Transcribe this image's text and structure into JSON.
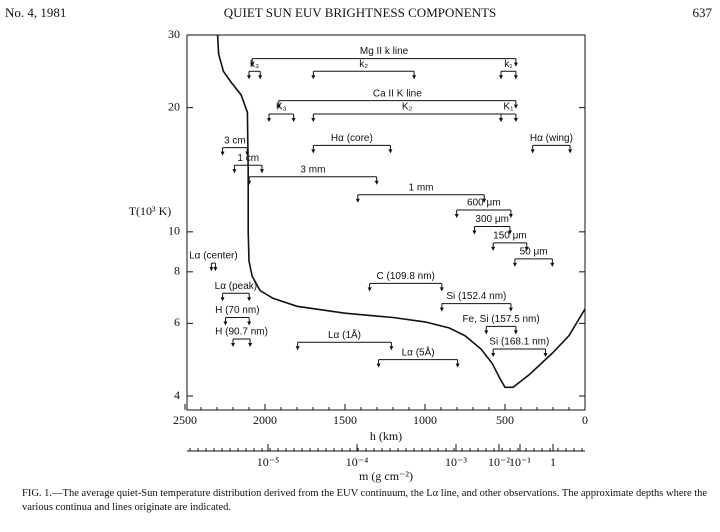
{
  "header": {
    "issue": "No. 4, 1981",
    "title": "QUIET SUN EUV BRIGHTNESS COMPONENTS",
    "page": "637"
  },
  "chart_data": {
    "type": "line",
    "ylog": true,
    "ylabel": "T(10³ K)",
    "xlabel": "h (km)",
    "x": [
      2296,
      2290,
      2260,
      2210,
      2150,
      2110,
      2105,
      2105,
      2100,
      2080,
      2030,
      1950,
      1800,
      1500,
      1200,
      1000,
      850,
      750,
      650,
      580,
      530,
      500,
      450,
      350,
      200,
      100,
      0
    ],
    "values": [
      30,
      27,
      24.5,
      23,
      21.5,
      19.5,
      14,
      10,
      8.5,
      7.8,
      7.2,
      6.9,
      6.6,
      6.35,
      6.2,
      6.05,
      5.85,
      5.6,
      5.2,
      4.8,
      4.4,
      4.2,
      4.2,
      4.5,
      5.1,
      5.6,
      6.5
    ],
    "color": "#111111",
    "xlim": [
      2500,
      0
    ],
    "xticks": [
      2500,
      2000,
      1500,
      1000,
      500,
      0
    ],
    "ylim": [
      3.7,
      30
    ],
    "yticks": [
      4,
      6,
      8,
      10,
      20,
      30
    ],
    "m_axis": {
      "label": "m (g cm⁻²)",
      "ticks": [
        {
          "value": 1e-05,
          "label": "10⁻⁵"
        },
        {
          "value": 0.0001,
          "label": "10⁻⁴"
        },
        {
          "value": 0.001,
          "label": "10⁻³"
        },
        {
          "value": 0.01,
          "label": "10⁻²"
        },
        {
          "value": 0.1,
          "label": "10⁻¹"
        },
        {
          "value": 1,
          "label": "1"
        }
      ]
    },
    "annotations": [
      {
        "label": "Mg II k line",
        "h": [
          2080,
          432
        ],
        "T": 26.3
      },
      {
        "label": "k₃",
        "h": [
          2100,
          2030
        ],
        "T": 24.5
      },
      {
        "label": "k₂",
        "h": [
          1698,
          1068
        ],
        "T": 24.5
      },
      {
        "label": "k₁",
        "h": [
          525,
          432
        ],
        "T": 24.5
      },
      {
        "label": "Ca II K line",
        "h": [
          1914,
          432
        ],
        "T": 20.8
      },
      {
        "label": "K₃",
        "h": [
          1975,
          1821
        ],
        "T": 19.3
      },
      {
        "label": "K₂",
        "h": [
          1698,
          525
        ],
        "T": 19.3
      },
      {
        "label": "K₁",
        "h": [
          525,
          432
        ],
        "T": 19.3
      },
      {
        "label": "Hα (core)",
        "h": [
          1698,
          1216
        ],
        "T": 16.2
      },
      {
        "label": "Hα (wing)",
        "h": [
          327,
          93
        ],
        "T": 16.2
      },
      {
        "label": "3 cm",
        "h": [
          2265,
          2111
        ],
        "T": 16
      },
      {
        "label": "1 cm",
        "h": [
          2191,
          2019
        ],
        "T": 14.5
      },
      {
        "label": "3 mm",
        "h": [
          2099,
          1302
        ],
        "T": 13.6
      },
      {
        "label": "1 mm",
        "h": [
          1420,
          630
        ],
        "T": 12.3
      },
      {
        "label": "600 μm",
        "h": [
          802,
          463
        ],
        "T": 11.3
      },
      {
        "label": "300 μm",
        "h": [
          691,
          469
        ],
        "T": 10.3
      },
      {
        "label": "150 μm",
        "h": [
          574,
          364
        ],
        "T": 9.4
      },
      {
        "label": "50 μm",
        "h": [
          438,
          204
        ],
        "T": 8.6
      },
      {
        "label": "Lα (center)",
        "h": [
          2335,
          2310
        ],
        "T": 8.4
      },
      {
        "label": "Lα (peak)",
        "h": [
          2265,
          2099
        ],
        "T": 7.1
      },
      {
        "label": "H (70 nm)",
        "h": [
          2247,
          2099
        ],
        "T": 6.2
      },
      {
        "label": "H (90.7 nm)",
        "h": [
          2200,
          2093
        ],
        "T": 5.5
      },
      {
        "label": "Lα (1Å)",
        "h": [
          1796,
          1210
        ],
        "T": 5.4
      },
      {
        "label": "Lα (5Å)",
        "h": [
          1290,
          796
        ],
        "T": 4.9
      },
      {
        "label": "C (109.8 nm)",
        "h": [
          1346,
          895
        ],
        "T": 7.5
      },
      {
        "label": "Si (152.4 nm)",
        "h": [
          895,
          463
        ],
        "T": 6.7
      },
      {
        "label": "Fe, Si (157.5 nm)",
        "h": [
          617,
          432
        ],
        "T": 5.9
      },
      {
        "label": "Si (168.1 nm)",
        "h": [
          574,
          247
        ],
        "T": 5.2
      }
    ]
  },
  "caption": "FIG. 1.—The average quiet-Sun temperature distribution derived from the EUV continuum, the Lα line, and other observations. The approximate depths where the various continua and lines originate are indicated."
}
